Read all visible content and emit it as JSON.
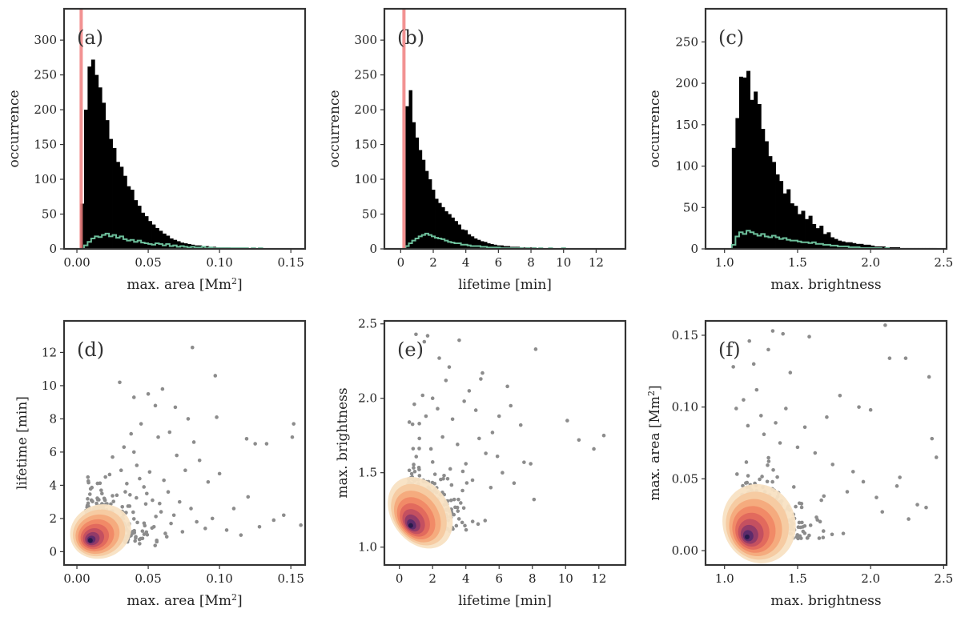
{
  "colors": {
    "bar": "#000000",
    "step": "#6dbf9b",
    "vline": "#f08080",
    "scatter": "#8c8c8c",
    "frame": "#333333"
  },
  "chart_data": [
    {
      "type": "bar",
      "panel_label": "(a)",
      "xlabel": "max. area [Mm",
      "xlabel_sup": "2",
      "xlabel_end": "]",
      "ylabel": "occurrence",
      "xlim": [
        -0.009,
        0.16
      ],
      "ylim": [
        0,
        345
      ],
      "xticks": [
        0.0,
        0.05,
        0.1,
        0.15
      ],
      "xtick_labels": [
        "0.00",
        "0.05",
        "0.10",
        "0.15"
      ],
      "yticks": [
        0,
        50,
        100,
        150,
        200,
        250,
        300
      ],
      "ytick_labels": [
        "0",
        "50",
        "100",
        "150",
        "200",
        "250",
        "300"
      ],
      "bin_start": 0.0025,
      "bin_width": 0.0025,
      "hist_all": [
        65,
        200,
        262,
        272,
        250,
        232,
        210,
        185,
        158,
        145,
        125,
        118,
        105,
        90,
        85,
        70,
        62,
        52,
        47,
        40,
        35,
        30,
        26,
        22,
        19,
        15,
        13,
        11,
        9,
        8,
        7,
        6,
        5,
        5,
        4,
        4,
        3,
        3,
        2,
        2,
        2,
        2,
        1,
        1,
        1,
        1,
        1,
        1,
        1,
        1,
        1,
        1,
        1,
        1,
        1,
        1,
        1,
        1,
        1,
        1
      ],
      "hist_sub": [
        0,
        5,
        10,
        15,
        18,
        17,
        20,
        22,
        18,
        20,
        16,
        18,
        14,
        12,
        13,
        10,
        12,
        9,
        8,
        7,
        6,
        8,
        7,
        5,
        7,
        4,
        5,
        3,
        4,
        3,
        2,
        3,
        2,
        2,
        3,
        1,
        2,
        1,
        1,
        1,
        1,
        1,
        1,
        1,
        1,
        1,
        1,
        0,
        1,
        0,
        1,
        0,
        0,
        0,
        0,
        0,
        0,
        0,
        0,
        0
      ],
      "vline_x": 0.003
    },
    {
      "type": "bar",
      "panel_label": "(b)",
      "xlabel": "lifetime [min]",
      "ylabel": "occurrence",
      "xlim": [
        -1.0,
        13.8
      ],
      "ylim": [
        0,
        345
      ],
      "xticks": [
        0,
        2,
        4,
        6,
        8,
        10,
        12
      ],
      "xtick_labels": [
        "0",
        "2",
        "4",
        "6",
        "8",
        "10",
        "12"
      ],
      "yticks": [
        0,
        50,
        100,
        150,
        200,
        250,
        300
      ],
      "ytick_labels": [
        "0",
        "50",
        "100",
        "150",
        "200",
        "250",
        "300"
      ],
      "bin_start": 0.3,
      "bin_width": 0.2,
      "hist_all": [
        205,
        228,
        182,
        160,
        142,
        128,
        112,
        100,
        85,
        72,
        66,
        60,
        54,
        50,
        45,
        40,
        35,
        28,
        27,
        21,
        18,
        15,
        13,
        11,
        10,
        8,
        7,
        6,
        5,
        5,
        4,
        4,
        3,
        3,
        3,
        2,
        2,
        2,
        2,
        2,
        1,
        1,
        1,
        1,
        1,
        1,
        1,
        1,
        1,
        1,
        1,
        1,
        1,
        1,
        1,
        1,
        1,
        1,
        1,
        1,
        1,
        1,
        1,
        1
      ],
      "hist_sub": [
        4,
        8,
        12,
        15,
        18,
        20,
        22,
        20,
        18,
        16,
        15,
        14,
        12,
        10,
        9,
        8,
        8,
        6,
        6,
        5,
        4,
        4,
        4,
        3,
        3,
        2,
        2,
        2,
        2,
        1,
        1,
        1,
        1,
        1,
        1,
        1,
        0,
        1,
        0,
        1,
        0,
        1,
        0,
        0,
        1,
        0,
        0,
        0,
        1,
        0,
        0,
        0,
        0,
        0,
        0,
        0,
        0,
        0,
        0,
        0,
        0,
        0,
        0,
        0
      ],
      "vline_x": 0.2
    },
    {
      "type": "bar",
      "panel_label": "(c)",
      "xlabel": "max. brightness",
      "ylabel": "occurrence",
      "xlim": [
        0.87,
        2.52
      ],
      "ylim": [
        0,
        290
      ],
      "xticks": [
        1.0,
        1.5,
        2.0,
        2.5
      ],
      "xtick_labels": [
        "1.0",
        "1.5",
        "2.0",
        "2.5"
      ],
      "yticks": [
        0,
        50,
        100,
        150,
        200,
        250
      ],
      "ytick_labels": [
        "0",
        "50",
        "100",
        "150",
        "200",
        "250"
      ],
      "bin_start": 1.05,
      "bin_width": 0.025,
      "hist_all": [
        122,
        158,
        208,
        207,
        215,
        180,
        190,
        175,
        145,
        130,
        112,
        105,
        90,
        82,
        67,
        72,
        55,
        52,
        42,
        46,
        36,
        40,
        30,
        25,
        28,
        18,
        20,
        14,
        12,
        10,
        9,
        8,
        8,
        7,
        6,
        6,
        5,
        5,
        4,
        3,
        3,
        3,
        2,
        2,
        2,
        2,
        1,
        1,
        1,
        1,
        1,
        1,
        1,
        1,
        1,
        1
      ],
      "hist_sub": [
        5,
        15,
        20,
        18,
        22,
        20,
        18,
        16,
        18,
        15,
        14,
        16,
        14,
        12,
        13,
        11,
        10,
        10,
        9,
        8,
        8,
        7,
        8,
        6,
        6,
        5,
        5,
        4,
        4,
        3,
        3,
        3,
        2,
        2,
        2,
        1,
        1,
        1,
        1,
        1,
        1,
        0,
        1,
        0,
        0,
        0,
        0,
        0,
        0,
        0,
        0,
        0,
        0,
        0,
        0,
        0
      ]
    },
    {
      "type": "scatter",
      "panel_label": "(d)",
      "xlabel": "max. area [Mm",
      "xlabel_sup": "2",
      "xlabel_end": "]",
      "ylabel": "lifetime [min]",
      "xlim": [
        -0.009,
        0.16
      ],
      "ylim": [
        -0.8,
        13.9
      ],
      "xticks": [
        0.0,
        0.05,
        0.1,
        0.15
      ],
      "xtick_labels": [
        "0.00",
        "0.05",
        "0.10",
        "0.15"
      ],
      "yticks": [
        0,
        2,
        4,
        6,
        8,
        10,
        12
      ],
      "ytick_labels": [
        "0",
        "2",
        "4",
        "6",
        "8",
        "10",
        "12"
      ],
      "points": [
        [
          0.081,
          12.3
        ],
        [
          0.097,
          10.6
        ],
        [
          0.03,
          10.2
        ],
        [
          0.06,
          9.8
        ],
        [
          0.05,
          9.5
        ],
        [
          0.04,
          9.3
        ],
        [
          0.069,
          8.7
        ],
        [
          0.055,
          8.8
        ],
        [
          0.078,
          8.0
        ],
        [
          0.098,
          8.1
        ],
        [
          0.152,
          7.7
        ],
        [
          0.151,
          6.9
        ],
        [
          0.119,
          6.8
        ],
        [
          0.125,
          6.5
        ],
        [
          0.133,
          6.5
        ],
        [
          0.082,
          6.6
        ],
        [
          0.065,
          7.2
        ],
        [
          0.057,
          6.9
        ],
        [
          0.07,
          5.8
        ],
        [
          0.086,
          5.5
        ],
        [
          0.1,
          4.7
        ],
        [
          0.12,
          3.3
        ],
        [
          0.145,
          2.2
        ],
        [
          0.138,
          1.9
        ],
        [
          0.11,
          2.6
        ],
        [
          0.095,
          2.0
        ],
        [
          0.157,
          1.6
        ],
        [
          0.092,
          4.2
        ],
        [
          0.076,
          4.9
        ],
        [
          0.045,
          7.7
        ],
        [
          0.038,
          7.1
        ],
        [
          0.033,
          6.3
        ],
        [
          0.025,
          5.7
        ],
        [
          0.02,
          4.5
        ],
        [
          0.042,
          5.2
        ],
        [
          0.051,
          4.8
        ],
        [
          0.061,
          4.3
        ],
        [
          0.064,
          3.6
        ],
        [
          0.072,
          3.0
        ],
        [
          0.08,
          2.6
        ],
        [
          0.084,
          1.8
        ],
        [
          0.09,
          1.4
        ],
        [
          0.105,
          1.3
        ],
        [
          0.115,
          1.0
        ],
        [
          0.128,
          1.5
        ],
        [
          0.017,
          3.7
        ],
        [
          0.028,
          3.4
        ],
        [
          0.035,
          4.1
        ],
        [
          0.047,
          3.9
        ],
        [
          0.053,
          3.1
        ],
        [
          0.059,
          2.4
        ],
        [
          0.066,
          1.7
        ],
        [
          0.074,
          1.2
        ],
        [
          0.046,
          0.8
        ],
        [
          0.056,
          0.6
        ],
        [
          0.063,
          0.9
        ],
        [
          0.04,
          6.0
        ],
        [
          0.031,
          4.9
        ],
        [
          0.044,
          4.4
        ],
        [
          0.049,
          3.5
        ],
        [
          0.058,
          2.9
        ],
        [
          0.068,
          2.2
        ],
        [
          0.054,
          1.5
        ],
        [
          0.062,
          1.1
        ]
      ],
      "density_center": [
        0.009,
        0.65
      ],
      "density_spread": [
        0.035,
        2.6
      ]
    },
    {
      "type": "scatter",
      "panel_label": "(e)",
      "xlabel": "lifetime [min]",
      "ylabel": "max. brightness",
      "xlim": [
        -0.9,
        13.6
      ],
      "ylim": [
        0.88,
        2.52
      ],
      "xticks": [
        0,
        2,
        4,
        6,
        8,
        10,
        12
      ],
      "xtick_labels": [
        "0",
        "2",
        "4",
        "6",
        "8",
        "10",
        "12"
      ],
      "yticks": [
        1.0,
        1.5,
        2.0,
        2.5
      ],
      "ytick_labels": [
        "1.0",
        "1.5",
        "2.0",
        "2.5"
      ],
      "points": [
        [
          1.0,
          2.43
        ],
        [
          1.7,
          2.42
        ],
        [
          1.5,
          2.38
        ],
        [
          3.6,
          2.39
        ],
        [
          8.2,
          2.33
        ],
        [
          5.0,
          2.17
        ],
        [
          4.9,
          2.13
        ],
        [
          6.5,
          2.08
        ],
        [
          7.3,
          1.82
        ],
        [
          10.8,
          1.72
        ],
        [
          12.3,
          1.75
        ],
        [
          11.7,
          1.66
        ],
        [
          10.1,
          1.85
        ],
        [
          7.5,
          1.57
        ],
        [
          6.7,
          1.95
        ],
        [
          6.0,
          1.88
        ],
        [
          5.6,
          1.77
        ],
        [
          5.2,
          1.63
        ],
        [
          4.6,
          1.92
        ],
        [
          4.2,
          2.05
        ],
        [
          3.9,
          1.98
        ],
        [
          3.2,
          1.86
        ],
        [
          2.8,
          2.12
        ],
        [
          2.4,
          2.27
        ],
        [
          2.0,
          2.0
        ],
        [
          1.6,
          1.88
        ],
        [
          1.2,
          1.83
        ],
        [
          0.6,
          1.84
        ],
        [
          3.5,
          1.69
        ],
        [
          4.0,
          1.56
        ],
        [
          4.4,
          1.45
        ],
        [
          3.8,
          1.38
        ],
        [
          3.3,
          1.32
        ],
        [
          5.5,
          1.4
        ],
        [
          6.2,
          1.5
        ],
        [
          6.9,
          1.43
        ],
        [
          7.9,
          1.56
        ],
        [
          8.1,
          1.32
        ],
        [
          2.6,
          1.74
        ],
        [
          1.9,
          1.66
        ],
        [
          2.3,
          1.93
        ],
        [
          1.4,
          2.02
        ],
        [
          0.9,
          1.96
        ],
        [
          3.0,
          2.21
        ],
        [
          4.8,
          1.73
        ],
        [
          5.9,
          1.61
        ]
      ],
      "density_center": [
        0.65,
        1.14
      ],
      "density_spread": [
        2.8,
        0.42
      ]
    },
    {
      "type": "scatter",
      "panel_label": "(f)",
      "xlabel": "max. brightness",
      "ylabel": "max. area [Mm",
      "ylabel_sup": "2",
      "ylabel_end": "]",
      "xlim": [
        0.87,
        2.52
      ],
      "ylim": [
        -0.01,
        0.16
      ],
      "xticks": [
        1.0,
        1.5,
        2.0,
        2.5
      ],
      "xtick_labels": [
        "1.0",
        "1.5",
        "2.0",
        "2.5"
      ],
      "yticks": [
        0.0,
        0.05,
        0.1,
        0.15
      ],
      "ytick_labels": [
        "0.00",
        "0.05",
        "0.10",
        "0.15"
      ],
      "points": [
        [
          2.1,
          0.157
        ],
        [
          1.33,
          0.153
        ],
        [
          1.4,
          0.151
        ],
        [
          1.58,
          0.149
        ],
        [
          1.17,
          0.146
        ],
        [
          1.3,
          0.14
        ],
        [
          2.13,
          0.134
        ],
        [
          2.24,
          0.134
        ],
        [
          1.2,
          0.13
        ],
        [
          1.06,
          0.128
        ],
        [
          1.45,
          0.124
        ],
        [
          2.4,
          0.121
        ],
        [
          1.79,
          0.108
        ],
        [
          1.92,
          0.1
        ],
        [
          2.0,
          0.098
        ],
        [
          1.7,
          0.093
        ],
        [
          1.55,
          0.086
        ],
        [
          2.42,
          0.078
        ],
        [
          2.45,
          0.065
        ],
        [
          2.2,
          0.051
        ],
        [
          2.18,
          0.045
        ],
        [
          2.04,
          0.037
        ],
        [
          2.32,
          0.032
        ],
        [
          2.38,
          0.03
        ],
        [
          2.26,
          0.022
        ],
        [
          1.22,
          0.112
        ],
        [
          1.13,
          0.105
        ],
        [
          1.08,
          0.099
        ],
        [
          1.25,
          0.094
        ],
        [
          1.35,
          0.089
        ],
        [
          1.27,
          0.081
        ],
        [
          1.38,
          0.075
        ],
        [
          1.5,
          0.072
        ],
        [
          1.62,
          0.068
        ],
        [
          1.74,
          0.06
        ],
        [
          1.88,
          0.055
        ],
        [
          1.95,
          0.048
        ],
        [
          1.84,
          0.041
        ],
        [
          2.08,
          0.027
        ],
        [
          1.68,
          0.038
        ],
        [
          1.16,
          0.087
        ],
        [
          1.42,
          0.099
        ]
      ],
      "density_center": [
        1.15,
        0.009
      ],
      "density_spread": [
        0.4,
        0.045
      ]
    }
  ]
}
